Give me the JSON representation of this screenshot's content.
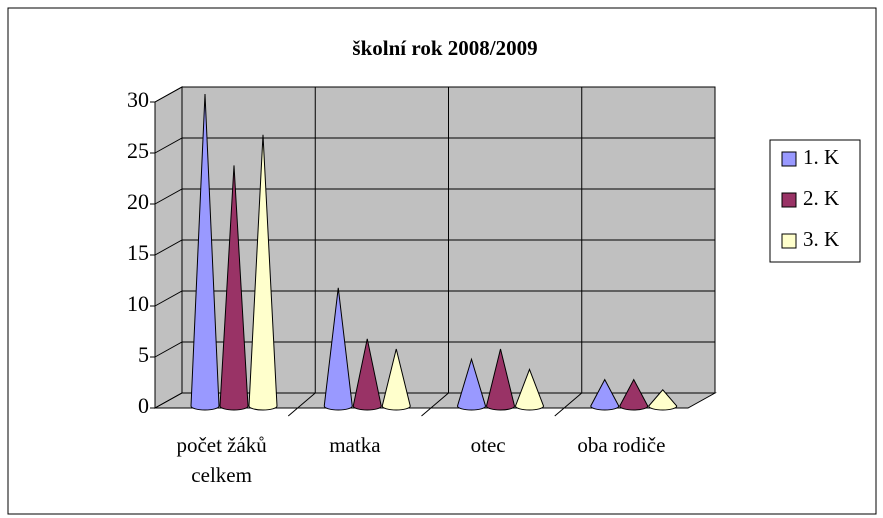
{
  "chart_data": {
    "type": "cone",
    "title": "školní rok 2008/2009",
    "categories": [
      "počet žáků celkem",
      "matka",
      "otec",
      "oba rodiče"
    ],
    "series": [
      {
        "name": "1. K",
        "color": "#9999ff",
        "values": [
          30,
          11,
          4,
          2
        ]
      },
      {
        "name": "2. K",
        "color": "#993366",
        "values": [
          23,
          6,
          5,
          2
        ]
      },
      {
        "name": "3. K",
        "color": "#ffffcc",
        "values": [
          26,
          5,
          3,
          1
        ]
      }
    ],
    "ylim": [
      0,
      30
    ],
    "yticks": [
      0,
      5,
      10,
      15,
      20,
      25,
      30
    ],
    "grid": true,
    "legend": "right"
  }
}
